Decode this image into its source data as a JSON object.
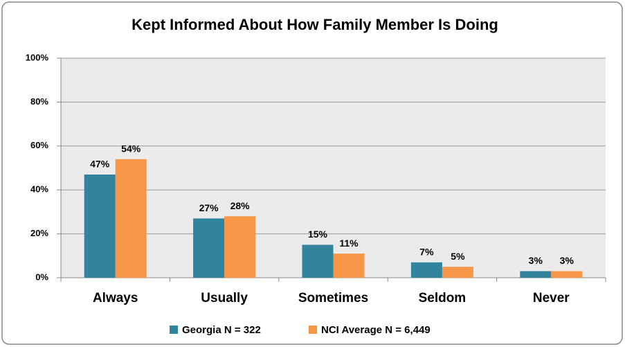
{
  "chart_data": {
    "type": "bar",
    "title": "Kept Informed About How Family Member Is Doing",
    "categories": [
      "Always",
      "Usually",
      "Sometimes",
      "Seldom",
      "Never"
    ],
    "series": [
      {
        "name": "Georgia N = 322",
        "color": "#31849b",
        "values": [
          47,
          27,
          15,
          7,
          3
        ],
        "value_labels": [
          "47%",
          "27%",
          "15%",
          "7%",
          "3%"
        ]
      },
      {
        "name": "NCI Average N = 6,449",
        "color": "#f79646",
        "values": [
          54,
          28,
          11,
          5,
          3
        ],
        "value_labels": [
          "54%",
          "28%",
          "11%",
          "5%",
          "3%"
        ]
      }
    ],
    "ylim": [
      0,
      100
    ],
    "yticks": [
      {
        "value": 0,
        "label": "0%"
      },
      {
        "value": 20,
        "label": "20%"
      },
      {
        "value": 40,
        "label": "40%"
      },
      {
        "value": 60,
        "label": "60%"
      },
      {
        "value": 80,
        "label": "80%"
      },
      {
        "value": 100,
        "label": "100%"
      }
    ],
    "grid": true,
    "legend": "bottom"
  }
}
